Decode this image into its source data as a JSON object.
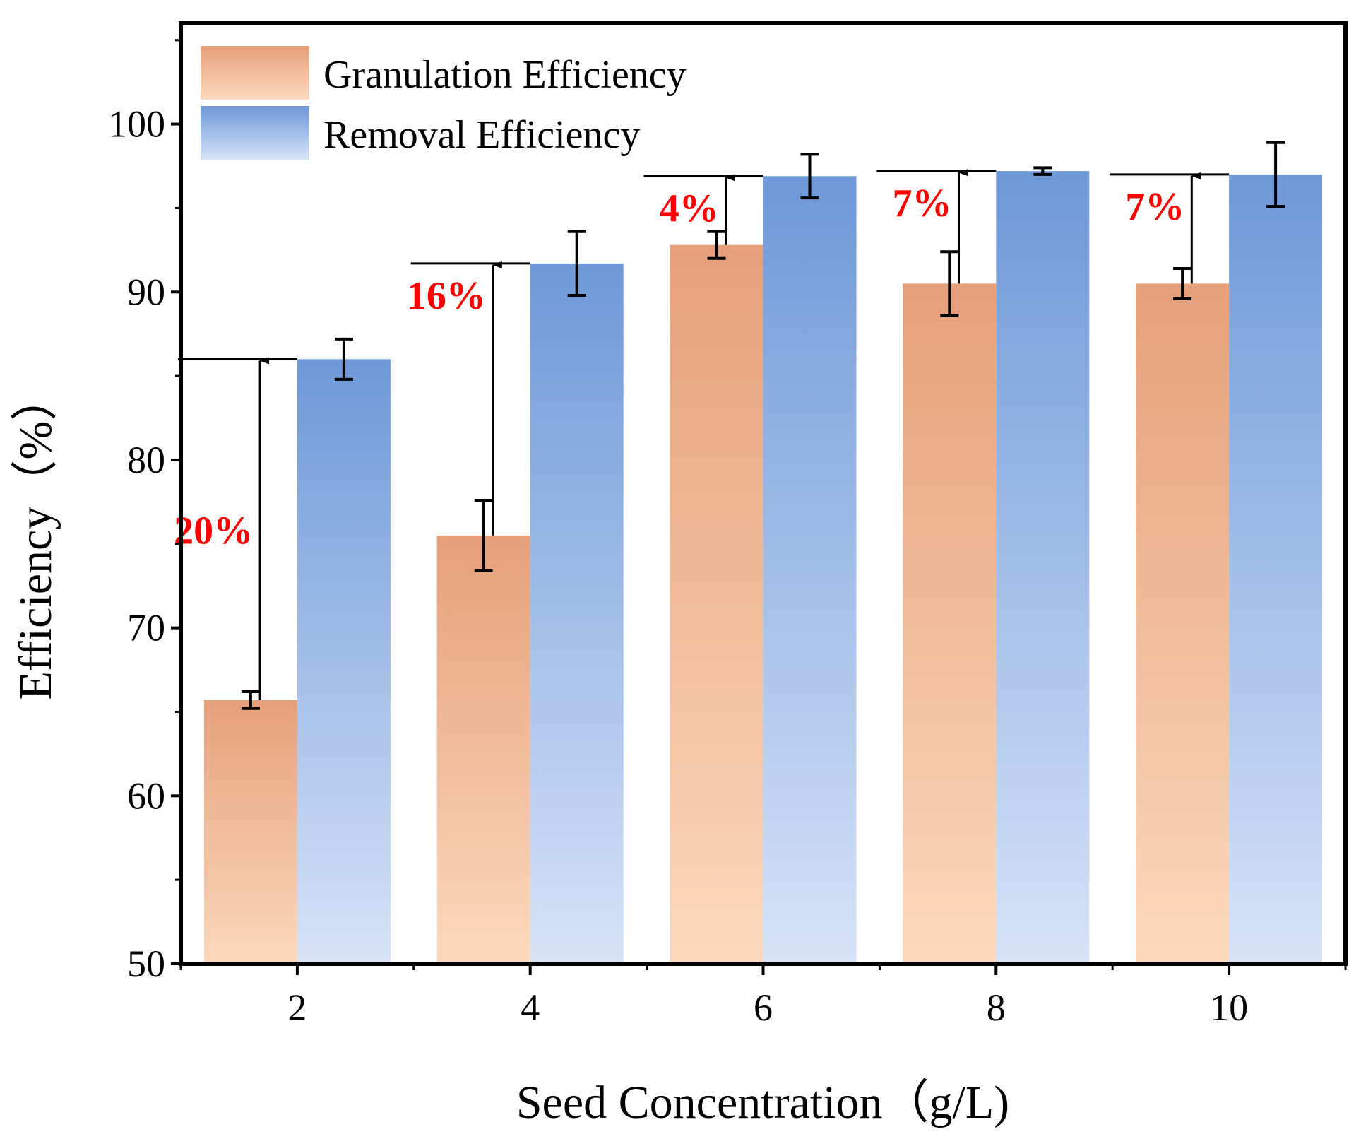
{
  "chart_data": {
    "type": "bar",
    "title": "",
    "xlabel": "Seed Concentration（g/L)",
    "ylabel": "Efficiency（%）",
    "categories": [
      "2",
      "4",
      "6",
      "8",
      "10"
    ],
    "ylim": [
      50,
      106
    ],
    "yticks": [
      50,
      60,
      70,
      80,
      90,
      100
    ],
    "grid": false,
    "legend_position": "top-left",
    "series": [
      {
        "name": "Granulation Efficiency",
        "values": [
          65.7,
          75.5,
          92.8,
          90.5,
          90.5
        ],
        "errors": [
          0.5,
          2.1,
          0.8,
          1.9,
          0.9
        ],
        "color_top": "#e6a07a",
        "color_bottom": "#fbd9bd"
      },
      {
        "name": "Removal Efficiency",
        "values": [
          86.0,
          91.7,
          96.9,
          97.2,
          97.0
        ],
        "errors": [
          1.2,
          1.9,
          1.3,
          0.2,
          1.9
        ],
        "color_top": "#6f98d8",
        "color_bottom": "#d6e3f7"
      }
    ],
    "annotations": [
      {
        "category": "2",
        "text": "20%"
      },
      {
        "category": "4",
        "text": "16%"
      },
      {
        "category": "6",
        "text": "4%"
      },
      {
        "category": "8",
        "text": "7%"
      },
      {
        "category": "10",
        "text": "7%"
      }
    ],
    "annotation_color": "#ff0000"
  }
}
